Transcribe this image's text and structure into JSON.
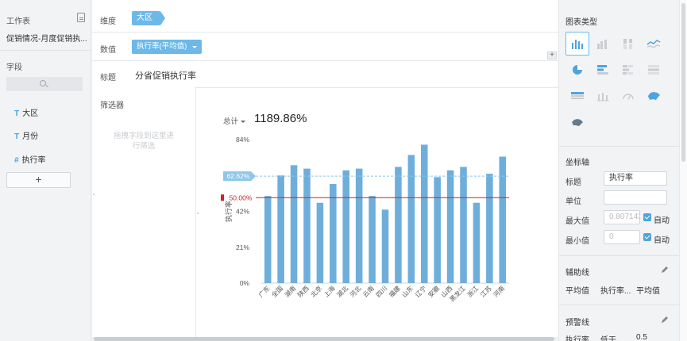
{
  "sidebar": {
    "worksheet_label": "工作表",
    "worksheet_name": "促销情况-月度促销执...",
    "fields_label": "字段",
    "fields": [
      {
        "type": "T",
        "name": "大区"
      },
      {
        "type": "T",
        "name": "月份"
      },
      {
        "type": "#",
        "name": "执行率"
      }
    ],
    "add_label": "+"
  },
  "shelf": {
    "dimension_label": "维度",
    "dimension_pill": "大区",
    "measure_label": "数值",
    "measure_pill": "执行率(平均值)",
    "title_label": "标题",
    "title_value": "分省促销执行率",
    "plus": "+"
  },
  "filter": {
    "label": "筛选器",
    "hint": "拖拽字段到这里进行筛选"
  },
  "summary": {
    "total_label": "总计",
    "total_value": "1189.86%"
  },
  "chart_data": {
    "type": "bar",
    "ylabel": "执行率",
    "ylim": [
      0,
      0.84
    ],
    "ticks": [
      "0%",
      "21%",
      "42%",
      "84%"
    ],
    "tick_values": [
      0,
      0.21,
      0.42,
      0.84
    ],
    "categories": [
      "广东",
      "全国",
      "湖南",
      "陕西",
      "北京",
      "上海",
      "湖北",
      "河北",
      "云南",
      "四川",
      "福建",
      "山东",
      "辽宁",
      "安徽",
      "山西",
      "黑龙江",
      "浙江",
      "江苏",
      "河南"
    ],
    "values": [
      0.51,
      0.63,
      0.69,
      0.67,
      0.47,
      0.58,
      0.66,
      0.67,
      0.51,
      0.43,
      0.68,
      0.75,
      0.81,
      0.62,
      0.66,
      0.68,
      0.47,
      0.64,
      0.74
    ],
    "bar_color": "#6eaedb",
    "average_line": {
      "label": "62.62%",
      "value": 0.6262,
      "color": "#8ec7ea"
    },
    "warning_line": {
      "label": "50.00%",
      "value": 0.5,
      "color": "#c8232c"
    }
  },
  "right_panel": {
    "chart_type_label": "图表类型",
    "axis_section": "坐标轴",
    "axis_title_label": "标题",
    "axis_title_value": "执行率",
    "unit_label": "单位",
    "unit_value": "",
    "max_label": "最大值",
    "max_value": "0.807143",
    "min_label": "最小值",
    "min_value": "0",
    "auto_label": "自动",
    "aux_section": "辅助线",
    "aux_col1": "平均值",
    "aux_col2": "执行率...",
    "aux_col3": "平均值",
    "warn_section": "预警线",
    "warn_col1": "执行率",
    "warn_col2": "低于",
    "warn_col3": "0.5",
    "accent_color": "#4ea4dc"
  }
}
